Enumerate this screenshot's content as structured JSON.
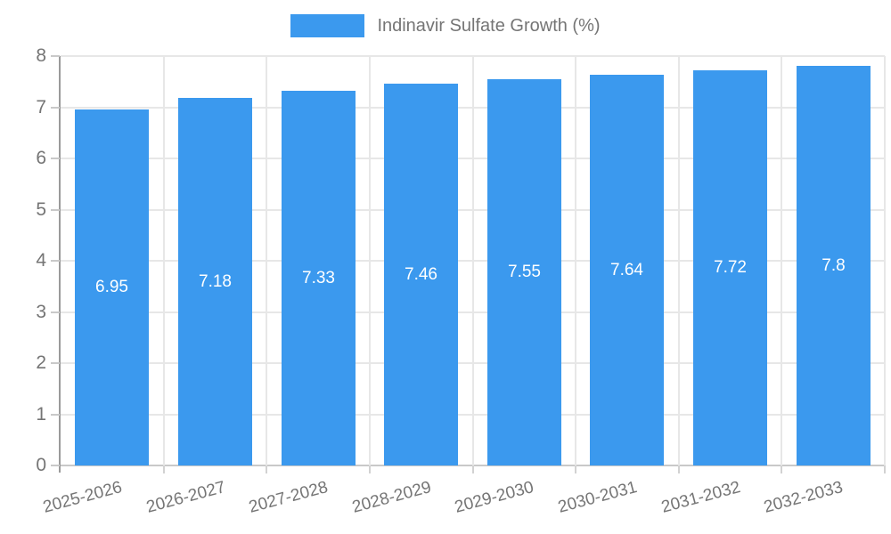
{
  "chart_data": {
    "type": "bar",
    "title": "Indinavir Sulfate Growth (%)",
    "legend": {
      "label": "Indinavir Sulfate Growth (%)",
      "position": "top"
    },
    "categories": [
      "2025-2026",
      "2026-2027",
      "2027-2028",
      "2028-2029",
      "2029-2030",
      "2030-2031",
      "2031-2032",
      "2032-2033"
    ],
    "values": [
      6.95,
      7.18,
      7.33,
      7.46,
      7.55,
      7.64,
      7.72,
      7.8
    ],
    "value_labels": [
      "6.95",
      "7.18",
      "7.33",
      "7.46",
      "7.55",
      "7.64",
      "7.72",
      "7.8"
    ],
    "xlabel": "",
    "ylabel": "",
    "ylim": [
      0,
      8
    ],
    "yticks": [
      0,
      1,
      2,
      3,
      4,
      5,
      6,
      7,
      8
    ],
    "grid": true,
    "colors": {
      "bar": "#3b99ee",
      "text": "#757575",
      "grid": "#e7e7e7",
      "baseline": "#c9c9c9",
      "axis": "#9a9a9a",
      "value_label": "#ffffff"
    }
  }
}
